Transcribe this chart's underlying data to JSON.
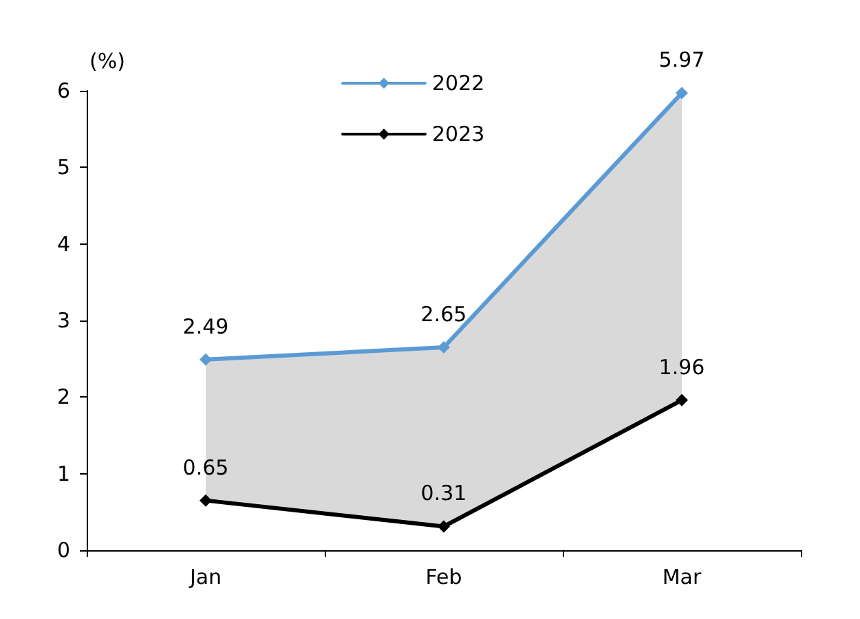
{
  "chart_data": {
    "type": "line",
    "ylabel": "(%)",
    "categories": [
      "Jan",
      "Feb",
      "Mar"
    ],
    "series": [
      {
        "name": "2022",
        "color": "#5b9bd5",
        "values": [
          2.49,
          2.65,
          5.97
        ],
        "lower": [
          0.65,
          0.31,
          1.96
        ],
        "upper": [
          2.49,
          2.65,
          5.97
        ]
      },
      {
        "name": "2023",
        "color": "#000000",
        "values": [
          0.65,
          0.31,
          1.96
        ]
      }
    ],
    "ylim": [
      0,
      6
    ],
    "yticks": [
      0,
      1,
      2,
      3,
      4,
      5,
      6
    ],
    "grid": false,
    "legend": "top",
    "marker": "diamond",
    "line_style": "solid",
    "data_labels": true
  }
}
